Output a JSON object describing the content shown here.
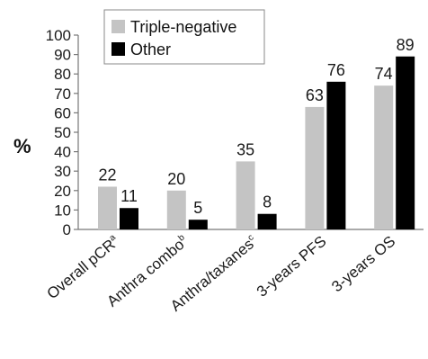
{
  "chart_data": {
    "type": "bar",
    "categories": [
      {
        "label": "Overall pCR",
        "sup": "a"
      },
      {
        "label": "Anthra combo",
        "sup": "b"
      },
      {
        "label": "Anthra/taxanes",
        "sup": "c"
      },
      {
        "label": "3-years PFS",
        "sup": ""
      },
      {
        "label": "3-years OS",
        "sup": ""
      }
    ],
    "series": [
      {
        "name": "Triple-negative",
        "color": "#c4c4c4",
        "values": [
          22,
          20,
          35,
          63,
          74
        ]
      },
      {
        "name": "Other",
        "color": "#000000",
        "values": [
          11,
          5,
          8,
          76,
          89
        ]
      }
    ],
    "ylabel": "%",
    "ylim": [
      0,
      100
    ],
    "yticks": [
      0,
      10,
      20,
      30,
      40,
      50,
      60,
      70,
      80,
      90,
      100
    ],
    "grid": false,
    "legend_position": "top-left"
  }
}
